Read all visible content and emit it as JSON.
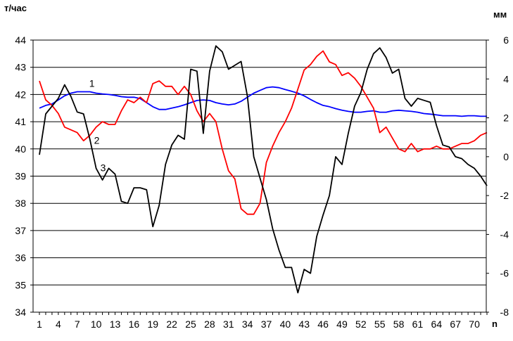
{
  "chart_data": {
    "type": "line",
    "left_axis": {
      "unit_label": "т/час",
      "ylim": [
        34,
        44
      ],
      "ticks": [
        "34",
        "35",
        "36",
        "37",
        "38",
        "39",
        "40",
        "41",
        "42",
        "43",
        "44"
      ]
    },
    "right_axis": {
      "unit_label": "мм",
      "ylim": [
        -8,
        6
      ],
      "ticks": [
        "-8",
        "-6",
        "-4",
        "-2",
        "0",
        "2",
        "4",
        "6"
      ]
    },
    "x_axis": {
      "label": "n",
      "range": [
        1,
        72
      ],
      "ticks": [
        "1",
        "4",
        "7",
        "10",
        "13",
        "16",
        "19",
        "22",
        "25",
        "28",
        "31",
        "34",
        "37",
        "40",
        "43",
        "46",
        "49",
        "52",
        "55",
        "58",
        "61",
        "64",
        "67",
        "70"
      ]
    },
    "grid": "horizontal",
    "series": [
      {
        "name": "1",
        "color": "#0000ff",
        "axis": "left",
        "x": [
          1,
          2,
          3,
          4,
          5,
          6,
          7,
          8,
          9,
          10,
          11,
          12,
          13,
          14,
          15,
          16,
          17,
          18,
          19,
          20,
          21,
          22,
          23,
          24,
          25,
          26,
          27,
          28,
          29,
          30,
          31,
          32,
          33,
          34,
          35,
          36,
          37,
          38,
          39,
          40,
          41,
          42,
          43,
          44,
          45,
          46,
          47,
          48,
          49,
          50,
          51,
          52,
          53,
          54,
          55,
          56,
          57,
          58,
          59,
          60,
          61,
          62,
          63,
          64,
          65,
          66,
          67,
          68,
          69,
          70,
          71,
          72
        ],
        "values": [
          41.5,
          41.6,
          41.65,
          41.8,
          41.95,
          42.05,
          42.1,
          42.1,
          42.1,
          42.05,
          42.02,
          42.0,
          41.97,
          41.92,
          41.9,
          41.9,
          41.85,
          41.7,
          41.55,
          41.45,
          41.45,
          41.5,
          41.55,
          41.62,
          41.7,
          41.78,
          41.8,
          41.78,
          41.7,
          41.65,
          41.62,
          41.65,
          41.75,
          41.9,
          42.05,
          42.15,
          42.25,
          42.28,
          42.25,
          42.18,
          42.12,
          42.05,
          41.95,
          41.82,
          41.7,
          41.6,
          41.55,
          41.48,
          41.42,
          41.38,
          41.35,
          41.35,
          41.38,
          41.4,
          41.35,
          41.35,
          41.4,
          41.42,
          41.4,
          41.38,
          41.35,
          41.3,
          41.28,
          41.25,
          41.22,
          41.22,
          41.22,
          41.2,
          41.22,
          41.22,
          41.2,
          41.2
        ]
      },
      {
        "name": "2",
        "color": "#ff0000",
        "axis": "left",
        "x": [
          1,
          2,
          3,
          4,
          5,
          6,
          7,
          8,
          9,
          10,
          11,
          12,
          13,
          14,
          15,
          16,
          17,
          18,
          19,
          20,
          21,
          22,
          23,
          24,
          25,
          26,
          27,
          28,
          29,
          30,
          31,
          32,
          33,
          34,
          35,
          36,
          37,
          38,
          39,
          40,
          41,
          42,
          43,
          44,
          45,
          46,
          47,
          48,
          49,
          50,
          51,
          52,
          53,
          54,
          55,
          56,
          57,
          58,
          59,
          60,
          61,
          62,
          63,
          64,
          65,
          66,
          67,
          68,
          69,
          70,
          71,
          72
        ],
        "values": [
          42.5,
          41.8,
          41.6,
          41.3,
          40.8,
          40.7,
          40.6,
          40.3,
          40.5,
          40.8,
          41.0,
          40.9,
          40.9,
          41.4,
          41.8,
          41.7,
          41.9,
          41.7,
          42.4,
          42.5,
          42.3,
          42.3,
          42.0,
          42.3,
          42.0,
          41.4,
          41.0,
          41.3,
          41.0,
          40.0,
          39.2,
          38.9,
          37.8,
          37.6,
          37.6,
          38.0,
          39.5,
          40.1,
          40.6,
          41.0,
          41.5,
          42.2,
          42.9,
          43.1,
          43.4,
          43.6,
          43.2,
          43.1,
          42.7,
          42.8,
          42.6,
          42.3,
          41.9,
          41.5,
          40.6,
          40.8,
          40.4,
          40.0,
          39.9,
          40.2,
          39.9,
          40.0,
          40.0,
          40.1,
          40.0,
          40.0,
          40.1,
          40.2,
          40.2,
          40.3,
          40.5,
          40.6
        ]
      },
      {
        "name": "3",
        "color": "#000000",
        "axis": "right",
        "x": [
          1,
          2,
          3,
          4,
          5,
          6,
          7,
          8,
          9,
          10,
          11,
          12,
          13,
          14,
          15,
          16,
          17,
          18,
          19,
          20,
          21,
          22,
          23,
          24,
          25,
          26,
          27,
          28,
          29,
          30,
          31,
          32,
          33,
          34,
          35,
          36,
          37,
          38,
          39,
          40,
          41,
          42,
          43,
          44,
          45,
          46,
          47,
          48,
          49,
          50,
          51,
          52,
          53,
          54,
          55,
          56,
          57,
          58,
          59,
          60,
          61,
          62,
          63,
          64,
          65,
          66,
          67,
          68,
          69,
          70,
          71,
          72
        ],
        "values": [
          0.1,
          2.2,
          2.6,
          3.0,
          3.7,
          3.1,
          2.3,
          2.2,
          0.9,
          -0.6,
          -1.2,
          -0.6,
          -0.9,
          -2.3,
          -2.4,
          -1.6,
          -1.6,
          -1.7,
          -3.6,
          -2.5,
          -0.4,
          0.6,
          1.1,
          0.9,
          4.5,
          4.4,
          1.2,
          4.4,
          5.7,
          5.4,
          4.5,
          4.7,
          4.9,
          3.1,
          0.0,
          -1.1,
          -2.2,
          -3.7,
          -4.8,
          -5.7,
          -5.7,
          -7.0,
          -5.8,
          -6.0,
          -4.1,
          -3.0,
          -2.0,
          0.0,
          -0.4,
          1.2,
          2.6,
          3.3,
          4.5,
          5.3,
          5.6,
          5.1,
          4.3,
          4.5,
          3.0,
          2.6,
          3.0,
          2.9,
          2.8,
          1.6,
          0.6,
          0.5,
          0.0,
          -0.1,
          -0.4,
          -0.6,
          -1.0,
          -1.5
        ]
      }
    ],
    "series_labels": [
      {
        "text": "1",
        "near_series": 0,
        "x": 8
      },
      {
        "text": "2",
        "near_series": 1,
        "x": 9
      },
      {
        "text": "3",
        "near_series": 2,
        "x": 10
      }
    ]
  }
}
